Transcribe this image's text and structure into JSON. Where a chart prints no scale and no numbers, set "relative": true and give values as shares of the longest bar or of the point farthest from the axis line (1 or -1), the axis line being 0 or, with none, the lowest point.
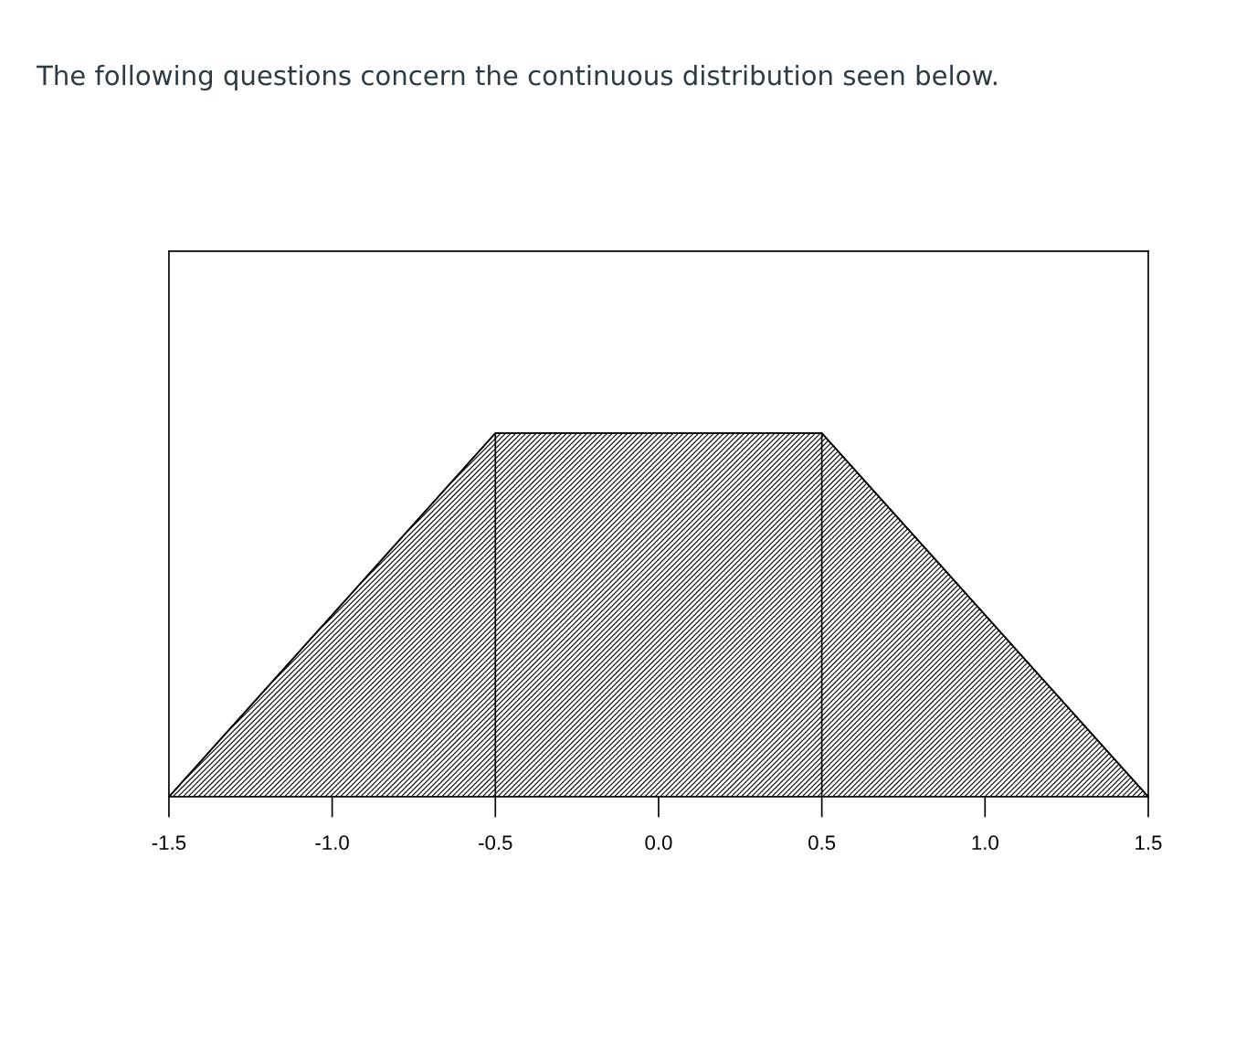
{
  "chart_data": {
    "type": "area",
    "title": "The following questions concern the continuous distribution seen below.",
    "x": [
      -1.5,
      -0.5,
      0.5,
      1.5
    ],
    "series": [
      {
        "color": "#000000",
        "values": [
          0,
          1,
          1,
          0
        ]
      }
    ],
    "relative": true,
    "xlim": [
      -1.5,
      1.5
    ],
    "xticks": [
      {
        "value": -1.5,
        "label": "-1.5"
      },
      {
        "value": -1.0,
        "label": "-1.0"
      },
      {
        "value": -0.5,
        "label": "-0.5"
      },
      {
        "value": 0.0,
        "label": "0.0"
      },
      {
        "value": 0.5,
        "label": "0.5"
      },
      {
        "value": 1.0,
        "label": "1.0"
      },
      {
        "value": 1.5,
        "label": "1.5"
      }
    ],
    "legend": false
  }
}
